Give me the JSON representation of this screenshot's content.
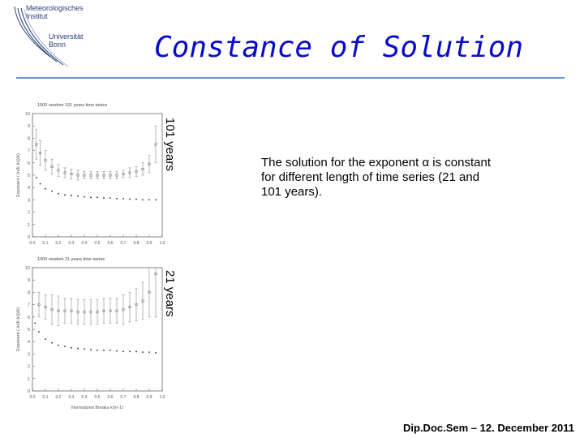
{
  "slide": {
    "title": "Constance of Solution",
    "description": "The solution for the exponent α is constant for different length of time series (21 and 101 years).",
    "footer": "Dip.Doc.Sem  –  12. December 2011"
  },
  "logo": {
    "line1": "Meteorologisches",
    "line2": "Institut",
    "line3": "Universität",
    "line4": "Bonn",
    "color": "#2a3f7a"
  },
  "chart_data": [
    {
      "type": "scatter",
      "title": "1000 random 101 years time series",
      "side_label": "101 years",
      "ylabel": "Exponent (-ln(f(-ln))/k)",
      "xlabel": "",
      "x_ticks": [
        "0.0",
        "0.1",
        "0.2",
        "0.3",
        "0.4",
        "0.5",
        "0.6",
        "0.7",
        "0.8",
        "0.9",
        "1.0"
      ],
      "y_ticks": [
        "0",
        "1",
        "2",
        "3",
        "4",
        "5",
        "6",
        "7",
        "8",
        "9",
        "10"
      ],
      "xlim": [
        0,
        1
      ],
      "ylim": [
        0,
        10
      ],
      "series": [
        {
          "x": [
            0.03,
            0.06,
            0.1,
            0.15,
            0.2,
            0.25,
            0.3,
            0.35,
            0.4,
            0.45,
            0.5,
            0.55,
            0.6,
            0.65,
            0.7,
            0.75,
            0.8,
            0.85,
            0.9,
            0.95
          ],
          "values": [
            7.5,
            6.8,
            6.2,
            5.7,
            5.4,
            5.2,
            5.1,
            5.0,
            5.0,
            5.0,
            5.0,
            5.0,
            5.0,
            5.0,
            5.1,
            5.2,
            5.3,
            5.5,
            5.9,
            7.5
          ],
          "errors": [
            1.2,
            1.0,
            0.8,
            0.6,
            0.5,
            0.4,
            0.4,
            0.4,
            0.3,
            0.3,
            0.3,
            0.3,
            0.3,
            0.3,
            0.3,
            0.4,
            0.4,
            0.5,
            0.7,
            1.5
          ]
        },
        {
          "x": [
            0.03,
            0.06,
            0.1,
            0.15,
            0.2,
            0.25,
            0.3,
            0.35,
            0.4,
            0.45,
            0.5,
            0.55,
            0.6,
            0.65,
            0.7,
            0.75,
            0.8,
            0.85,
            0.9,
            0.95
          ],
          "values": [
            4.8,
            4.3,
            3.9,
            3.7,
            3.5,
            3.4,
            3.35,
            3.3,
            3.25,
            3.2,
            3.2,
            3.15,
            3.15,
            3.1,
            3.1,
            3.05,
            3.05,
            3.0,
            3.0,
            3.0
          ]
        }
      ]
    },
    {
      "type": "scatter",
      "title": "1000 random 21 years time series",
      "side_label": "21 years",
      "ylabel": "Exponent (-ln(f(-ln))/k)",
      "xlabel": "Normalized Breaks k/(n-1)",
      "x_ticks": [
        "0.0",
        "0.1",
        "0.2",
        "0.3",
        "0.4",
        "0.5",
        "0.6",
        "0.7",
        "0.8",
        "0.9",
        "1.0"
      ],
      "y_ticks": [
        "0",
        "1",
        "2",
        "3",
        "4",
        "5",
        "6",
        "7",
        "8",
        "9",
        "10"
      ],
      "xlim": [
        0,
        1
      ],
      "ylim": [
        0,
        10
      ],
      "series": [
        {
          "x": [
            0.05,
            0.1,
            0.15,
            0.2,
            0.25,
            0.3,
            0.35,
            0.4,
            0.45,
            0.5,
            0.55,
            0.6,
            0.65,
            0.7,
            0.75,
            0.8,
            0.85,
            0.9,
            0.95
          ],
          "values": [
            7.0,
            6.8,
            6.6,
            6.5,
            6.5,
            6.5,
            6.4,
            6.4,
            6.4,
            6.4,
            6.5,
            6.5,
            6.5,
            6.6,
            6.8,
            7.0,
            7.3,
            8.0,
            9.5
          ],
          "errors": [
            1.0,
            1.0,
            1.2,
            1.2,
            1.0,
            1.0,
            1.0,
            1.0,
            1.0,
            1.0,
            1.0,
            1.0,
            1.0,
            1.2,
            1.2,
            1.3,
            1.5,
            2.0,
            3.5
          ]
        },
        {
          "x": [
            0.02,
            0.05,
            0.1,
            0.15,
            0.2,
            0.25,
            0.3,
            0.35,
            0.4,
            0.45,
            0.5,
            0.55,
            0.6,
            0.65,
            0.7,
            0.75,
            0.8,
            0.85,
            0.9,
            0.95
          ],
          "values": [
            5.5,
            4.8,
            4.2,
            3.9,
            3.7,
            3.6,
            3.5,
            3.45,
            3.4,
            3.35,
            3.3,
            3.3,
            3.3,
            3.25,
            3.2,
            3.2,
            3.2,
            3.15,
            3.15,
            3.1
          ]
        }
      ]
    }
  ]
}
